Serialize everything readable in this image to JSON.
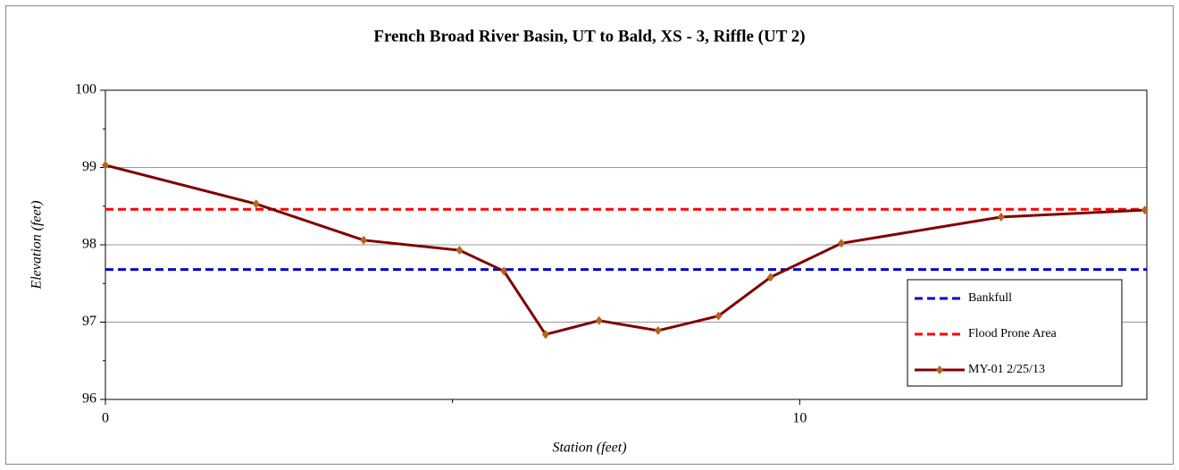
{
  "chart_data": {
    "type": "line",
    "title": "French Broad River Basin, UT to Bald, XS - 3, Riffle (UT 2)",
    "xlabel": "Station (feet)",
    "ylabel": "Elevation (feet)",
    "xlim": [
      0,
      15
    ],
    "xticks": [
      0,
      10
    ],
    "xminorticks": [
      5
    ],
    "ylim": [
      96,
      100
    ],
    "yticks": [
      96,
      97,
      98,
      99,
      100
    ],
    "yminorticks": [
      96.5,
      97.5,
      98.5,
      99.5
    ],
    "grid": true,
    "legend": "lower right",
    "series": [
      {
        "name": "Bankfull",
        "color": "#0000cc",
        "dash": true,
        "x": [
          0,
          15
        ],
        "values": [
          97.68,
          97.68
        ]
      },
      {
        "name": "Flood Prone Area",
        "color": "#ff0000",
        "dash": true,
        "x": [
          0,
          15
        ],
        "values": [
          98.46,
          98.46
        ]
      },
      {
        "name": "MY-01 2/25/13",
        "color": "#800000",
        "marker_color": "#b5651d",
        "x": [
          0,
          2.17,
          3.72,
          5.1,
          5.74,
          6.34,
          7.11,
          7.96,
          8.83,
          9.58,
          10.6,
          12.9,
          14.97
        ],
        "values": [
          99.03,
          98.53,
          98.06,
          97.93,
          97.66,
          96.84,
          97.02,
          96.89,
          97.08,
          97.58,
          98.02,
          98.36,
          98.45
        ]
      }
    ]
  }
}
